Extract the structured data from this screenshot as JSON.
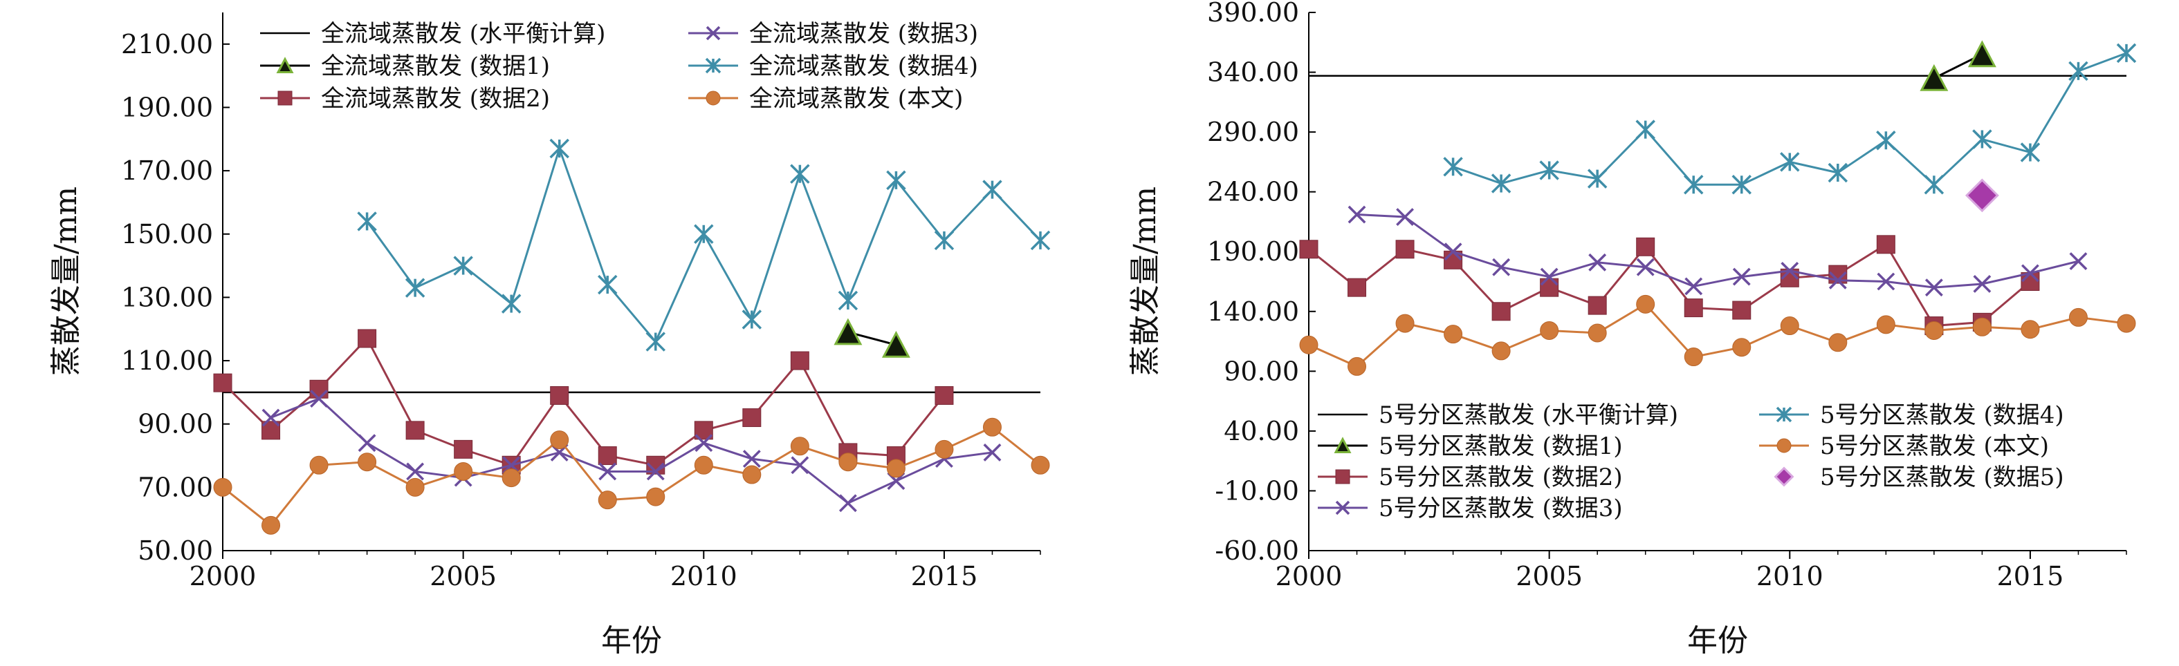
{
  "chart_data": [
    {
      "type": "line",
      "xlabel": "年份",
      "ylabel": "蒸散发量/mm",
      "xlim": [
        2000,
        2017
      ],
      "ylim": [
        50,
        220
      ],
      "xticks": [
        2000,
        2005,
        2010,
        2015
      ],
      "xtick_labels": [
        "2000",
        "2005",
        "2010",
        "2015"
      ],
      "yticks": [
        50,
        70,
        90,
        110,
        130,
        150,
        170,
        190,
        210
      ],
      "ytick_labels": [
        "50.00",
        "70.00",
        "90.00",
        "110.00",
        "130.00",
        "150.00",
        "170.00",
        "190.00",
        "210.00"
      ],
      "grid": false,
      "legend_position": "top",
      "series": [
        {
          "name": "全流域蒸散发 (水平衡计算)",
          "style": "hline",
          "color": "#000000",
          "x": [
            2000,
            2017
          ],
          "values": [
            100,
            100
          ]
        },
        {
          "name": "全流域蒸散发 (数据1)",
          "style": "triangle",
          "color": "#1a3a10",
          "x": [
            2013,
            2014
          ],
          "values": [
            119,
            115
          ]
        },
        {
          "name": "全流域蒸散发 (数据2)",
          "style": "square",
          "color": "#9b3a4a",
          "x": [
            2000,
            2001,
            2002,
            2003,
            2004,
            2005,
            2006,
            2007,
            2008,
            2009,
            2010,
            2011,
            2012,
            2013,
            2014,
            2015
          ],
          "values": [
            103,
            88,
            101,
            117,
            88,
            82,
            77,
            99,
            80,
            77,
            88,
            92,
            110,
            81,
            80,
            99
          ]
        },
        {
          "name": "全流域蒸散发 (数据3)",
          "style": "x",
          "color": "#6a4c9c",
          "x": [
            2001,
            2002,
            2003,
            2004,
            2005,
            2006,
            2007,
            2008,
            2009,
            2010,
            2011,
            2012,
            2013,
            2014,
            2015,
            2016
          ],
          "values": [
            92,
            98,
            84,
            75,
            73,
            77,
            81,
            75,
            75,
            84,
            79,
            77,
            65,
            72,
            79,
            81
          ]
        },
        {
          "name": "全流域蒸散发 (数据4)",
          "style": "star",
          "color": "#3f8ea8",
          "x": [
            2003,
            2004,
            2005,
            2006,
            2007,
            2008,
            2009,
            2010,
            2011,
            2012,
            2013,
            2014,
            2015,
            2016,
            2017
          ],
          "values": [
            154,
            133,
            140,
            128,
            177,
            134,
            116,
            150,
            123,
            169,
            129,
            167,
            148,
            164,
            148
          ]
        },
        {
          "name": "全流域蒸散发 (本文)",
          "style": "circle",
          "color": "#d07a3a",
          "x": [
            2000,
            2001,
            2002,
            2003,
            2004,
            2005,
            2006,
            2007,
            2008,
            2009,
            2010,
            2011,
            2012,
            2013,
            2014,
            2015,
            2016,
            2017
          ],
          "values": [
            70,
            58,
            77,
            78,
            70,
            75,
            73,
            85,
            66,
            67,
            77,
            74,
            83,
            78,
            76,
            82,
            89,
            77
          ]
        }
      ]
    },
    {
      "type": "line",
      "xlabel": "年份",
      "ylabel": "蒸散发量/mm",
      "xlim": [
        2000,
        2017
      ],
      "ylim": [
        -60,
        390
      ],
      "xticks": [
        2000,
        2005,
        2010,
        2015
      ],
      "xtick_labels": [
        "2000",
        "2005",
        "2010",
        "2015"
      ],
      "yticks": [
        -60,
        -10,
        40,
        90,
        140,
        190,
        240,
        290,
        340,
        390
      ],
      "ytick_labels": [
        "-60.00",
        "-10.00",
        "40.00",
        "90.00",
        "140.00",
        "190.00",
        "240.00",
        "290.00",
        "340.00",
        "390.00"
      ],
      "grid": false,
      "legend_position": "bottom",
      "series": [
        {
          "name": "5号分区蒸散发 (水平衡计算)",
          "style": "hline",
          "color": "#000000",
          "x": [
            2000,
            2017
          ],
          "values": [
            337,
            337
          ]
        },
        {
          "name": "5号分区蒸散发 (数据1)",
          "style": "triangle",
          "color": "#1a3a10",
          "x": [
            2013,
            2014
          ],
          "values": [
            335,
            355
          ]
        },
        {
          "name": "5号分区蒸散发 (数据2)",
          "style": "square",
          "color": "#9b3a4a",
          "x": [
            2000,
            2001,
            2002,
            2003,
            2004,
            2005,
            2006,
            2007,
            2008,
            2009,
            2010,
            2011,
            2012,
            2013,
            2014,
            2015
          ],
          "values": [
            192,
            160,
            192,
            183,
            140,
            160,
            145,
            194,
            143,
            141,
            168,
            171,
            196,
            128,
            131,
            165
          ]
        },
        {
          "name": "5号分区蒸散发 (数据3)",
          "style": "x",
          "color": "#6a4c9c",
          "x": [
            2001,
            2002,
            2003,
            2004,
            2005,
            2006,
            2007,
            2008,
            2009,
            2010,
            2011,
            2012,
            2013,
            2014,
            2015,
            2016
          ],
          "values": [
            221,
            219,
            190,
            177,
            169,
            181,
            177,
            161,
            169,
            174,
            166,
            165,
            160,
            163,
            172,
            182
          ]
        },
        {
          "name": "5号分区蒸散发 (数据4)",
          "style": "star",
          "color": "#3f8ea8",
          "x": [
            2003,
            2004,
            2005,
            2006,
            2007,
            2008,
            2009,
            2010,
            2011,
            2012,
            2013,
            2014,
            2015,
            2016,
            2017
          ],
          "values": [
            261,
            247,
            258,
            251,
            292,
            246,
            246,
            265,
            256,
            283,
            246,
            284,
            273,
            341,
            356
          ]
        },
        {
          "name": "5号分区蒸散发 (本文)",
          "style": "circle",
          "color": "#d07a3a",
          "x": [
            2000,
            2001,
            2002,
            2003,
            2004,
            2005,
            2006,
            2007,
            2008,
            2009,
            2010,
            2011,
            2012,
            2013,
            2014,
            2015,
            2016,
            2017
          ],
          "values": [
            112,
            94,
            130,
            121,
            107,
            124,
            122,
            146,
            102,
            110,
            128,
            114,
            129,
            124,
            127,
            125,
            135,
            130
          ]
        },
        {
          "name": "5号分区蒸散发 (数据5)",
          "style": "diamond",
          "color": "#a63aa8",
          "x": [
            2014
          ],
          "values": [
            237
          ]
        }
      ]
    }
  ]
}
